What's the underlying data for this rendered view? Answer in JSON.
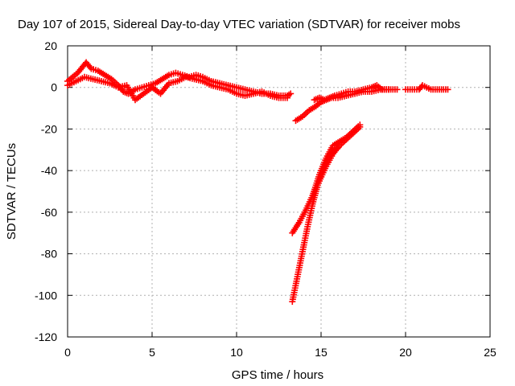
{
  "chart_data": {
    "type": "scatter",
    "title": "Day 107 of 2015, Sidereal Day-to-day VTEC variation (SDTVAR) for receiver mobs",
    "xlabel": "GPS time / hours",
    "ylabel": "SDTVAR / TECUs",
    "xlim": [
      0,
      25
    ],
    "ylim": [
      -120,
      20
    ],
    "xticks": [
      "0",
      "5",
      "10",
      "15",
      "20",
      "25"
    ],
    "yticks": [
      "20",
      "0",
      "-20",
      "-40",
      "-60",
      "-80",
      "-100",
      "-120"
    ],
    "grid": true,
    "marker": "plus",
    "series_color": "#ff0000",
    "series": [
      {
        "values": [
          [
            0.0,
            3.0
          ],
          [
            0.3,
            5.0
          ],
          [
            0.6,
            7.0
          ],
          [
            0.9,
            10.0
          ],
          [
            1.1,
            12.0
          ],
          [
            1.4,
            9.0
          ],
          [
            1.8,
            8.0
          ],
          [
            2.2,
            6.0
          ],
          [
            2.6,
            4.0
          ],
          [
            3.0,
            1.0
          ],
          [
            3.3,
            -2.0
          ],
          [
            3.6,
            -3.0
          ],
          [
            4.0,
            -1.0
          ],
          [
            4.4,
            0.0
          ],
          [
            4.8,
            1.0
          ],
          [
            5.2,
            2.0
          ],
          [
            5.6,
            4.0
          ],
          [
            6.0,
            6.0
          ],
          [
            6.4,
            7.0
          ],
          [
            6.8,
            6.0
          ],
          [
            7.2,
            5.0
          ],
          [
            7.6,
            6.0
          ],
          [
            8.0,
            5.0
          ],
          [
            8.5,
            3.0
          ],
          [
            9.0,
            2.0
          ],
          [
            9.5,
            1.0
          ],
          [
            10.0,
            0.0
          ],
          [
            10.5,
            -1.0
          ],
          [
            11.0,
            -2.0
          ],
          [
            11.5,
            -3.0
          ],
          [
            12.0,
            -3.0
          ],
          [
            12.5,
            -4.0
          ],
          [
            13.0,
            -4.0
          ],
          [
            13.2,
            -3.0
          ]
        ]
      },
      {
        "values": [
          [
            0.0,
            1.0
          ],
          [
            0.5,
            3.0
          ],
          [
            1.0,
            5.0
          ],
          [
            1.5,
            4.0
          ],
          [
            2.0,
            3.0
          ],
          [
            2.5,
            2.0
          ],
          [
            3.0,
            0.0
          ],
          [
            3.5,
            1.0
          ],
          [
            4.0,
            -6.0
          ],
          [
            4.5,
            -3.0
          ],
          [
            5.0,
            0.0
          ],
          [
            5.5,
            -3.0
          ],
          [
            6.0,
            2.0
          ],
          [
            6.5,
            3.0
          ],
          [
            7.0,
            5.0
          ],
          [
            7.5,
            4.0
          ],
          [
            8.0,
            3.0
          ],
          [
            8.5,
            1.0
          ],
          [
            9.0,
            0.0
          ],
          [
            9.5,
            -1.0
          ],
          [
            10.0,
            -3.0
          ],
          [
            10.5,
            -4.0
          ],
          [
            11.0,
            -3.0
          ],
          [
            11.5,
            -2.0
          ],
          [
            12.0,
            -4.0
          ],
          [
            12.5,
            -5.0
          ],
          [
            13.0,
            -5.0
          ]
        ]
      },
      {
        "values": [
          [
            13.5,
            -16.0
          ],
          [
            13.9,
            -14.0
          ],
          [
            14.3,
            -11.0
          ],
          [
            14.7,
            -9.0
          ],
          [
            15.0,
            -7.0
          ],
          [
            15.3,
            -6.0
          ],
          [
            15.6,
            -5.0
          ],
          [
            16.0,
            -5.0
          ],
          [
            16.5,
            -4.0
          ],
          [
            17.0,
            -3.0
          ],
          [
            17.5,
            -2.0
          ],
          [
            18.0,
            -2.0
          ],
          [
            18.5,
            -1.0
          ],
          [
            19.0,
            -1.0
          ],
          [
            19.5,
            -1.0
          ]
        ]
      },
      {
        "values": [
          [
            14.6,
            -6.0
          ],
          [
            14.9,
            -5.0
          ],
          [
            15.2,
            -6.0
          ],
          [
            15.5,
            -5.0
          ],
          [
            15.8,
            -4.0
          ],
          [
            16.2,
            -3.0
          ],
          [
            16.6,
            -2.0
          ],
          [
            17.0,
            -2.0
          ],
          [
            17.5,
            -1.0
          ],
          [
            18.0,
            0.0
          ],
          [
            18.3,
            1.0
          ],
          [
            18.6,
            -1.0
          ],
          [
            19.0,
            -1.0
          ]
        ]
      },
      {
        "values": [
          [
            20.0,
            -1.0
          ],
          [
            20.4,
            -1.0
          ],
          [
            20.8,
            -1.0
          ],
          [
            21.0,
            1.0
          ],
          [
            21.5,
            -1.0
          ],
          [
            22.0,
            -1.0
          ],
          [
            22.5,
            -1.0
          ]
        ]
      },
      {
        "values": [
          [
            13.3,
            -103.0
          ],
          [
            13.6,
            -91.0
          ],
          [
            13.9,
            -79.0
          ],
          [
            14.2,
            -67.0
          ],
          [
            14.5,
            -56.0
          ],
          [
            14.8,
            -47.0
          ],
          [
            15.1,
            -40.0
          ],
          [
            15.4,
            -34.0
          ],
          [
            15.7,
            -31.0
          ],
          [
            16.0,
            -29.0
          ]
        ]
      },
      {
        "values": [
          [
            13.3,
            -70.0
          ],
          [
            13.7,
            -65.0
          ],
          [
            14.1,
            -59.0
          ],
          [
            14.5,
            -52.0
          ],
          [
            14.9,
            -45.0
          ],
          [
            15.3,
            -38.0
          ],
          [
            15.7,
            -32.0
          ],
          [
            16.1,
            -28.0
          ],
          [
            16.5,
            -25.0
          ],
          [
            16.9,
            -22.0
          ],
          [
            17.3,
            -19.0
          ]
        ]
      },
      {
        "values": [
          [
            14.5,
            -52.0
          ],
          [
            14.9,
            -42.0
          ],
          [
            15.3,
            -34.0
          ],
          [
            15.7,
            -28.0
          ],
          [
            16.1,
            -26.0
          ],
          [
            16.5,
            -24.0
          ],
          [
            16.9,
            -21.0
          ],
          [
            17.3,
            -18.0
          ]
        ]
      }
    ]
  }
}
